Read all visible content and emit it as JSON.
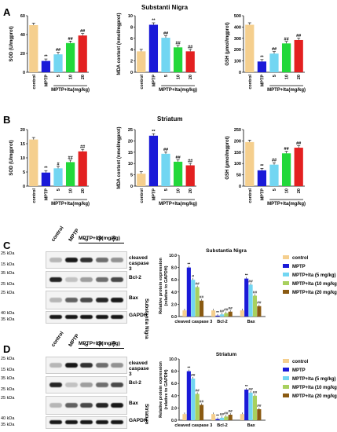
{
  "panel_labels": {
    "A": "A",
    "B": "B",
    "C": "C",
    "D": "D"
  },
  "sections": {
    "substantia": "Substanti Nigra",
    "striatum": "Striatum"
  },
  "group_label": "MPTP+Ita(mg/kg)",
  "categories": [
    "control",
    "MPTP",
    "5",
    "10",
    "20"
  ],
  "colors": {
    "control": "#f5cf8e",
    "MPTP": "#1a1ad8",
    "ita5": "#72d6f2",
    "ita10": "#22d83a",
    "ita20": "#e32020",
    "c_ita20": "#8a5a12",
    "c_ita10": "#a8d05e"
  },
  "chart_data": [
    {
      "type": "bar",
      "id": "A1",
      "ylabel": "SOD (U/mgprot)",
      "yticks": [
        "0",
        "20",
        "40",
        "60"
      ],
      "ylim": [
        0,
        60
      ],
      "values": [
        50,
        12,
        19,
        31,
        39
      ],
      "stars": [
        "",
        "**",
        "##",
        "##",
        "##"
      ]
    },
    {
      "type": "bar",
      "id": "A2",
      "ylabel": "MDA content (nmol/mgprot)",
      "yticks": [
        "0",
        "2",
        "4",
        "6",
        "8",
        "10"
      ],
      "ylim": [
        0,
        10
      ],
      "values": [
        3.7,
        8.4,
        6.1,
        4.4,
        3.7
      ],
      "stars": [
        "",
        "**",
        "##",
        "##",
        "##"
      ]
    },
    {
      "type": "bar",
      "id": "A3",
      "ylabel": "GSH (μmol/mgprot)",
      "yticks": [
        "0",
        "100",
        "200",
        "300",
        "400",
        "500"
      ],
      "ylim": [
        0,
        500
      ],
      "values": [
        420,
        95,
        165,
        255,
        285
      ],
      "stars": [
        "",
        "**",
        "##",
        "##",
        "##"
      ]
    },
    {
      "type": "bar",
      "id": "B1",
      "ylabel": "SOD (U/mgprot)",
      "yticks": [
        "0",
        "5",
        "10",
        "15",
        "20"
      ],
      "ylim": [
        0,
        20
      ],
      "values": [
        16.5,
        4.8,
        6.3,
        8.5,
        12.3
      ],
      "stars": [
        "",
        "**",
        "#",
        "##",
        "##"
      ]
    },
    {
      "type": "bar",
      "id": "B2",
      "ylabel": "MDA content (nmol/mgprot)",
      "yticks": [
        "0",
        "5",
        "10",
        "15",
        "20",
        "25"
      ],
      "ylim": [
        0,
        25
      ],
      "values": [
        5.5,
        22.3,
        14.3,
        10.8,
        9.2
      ],
      "stars": [
        "",
        "**",
        "##",
        "##",
        "##"
      ]
    },
    {
      "type": "bar",
      "id": "B3",
      "ylabel": "GSH (μmol/mgprot)",
      "yticks": [
        "0",
        "50",
        "100",
        "150",
        "200",
        "250"
      ],
      "ylim": [
        0,
        250
      ],
      "values": [
        195,
        70,
        95,
        145,
        170
      ],
      "stars": [
        "",
        "**",
        "##",
        "##",
        "##"
      ]
    },
    {
      "type": "bar",
      "id": "C",
      "title": "Substantia Nigra",
      "ylabel": "Relative protein expression (relative to GAPDH)",
      "yticks": [
        "0.0",
        "2.0",
        "4.0",
        "6.0",
        "8.0",
        "10.0"
      ],
      "ylim": [
        0,
        10
      ],
      "categories": [
        "cleaved caspase 3",
        "Bcl-2",
        "Bax"
      ],
      "series": [
        {
          "name": "control",
          "values": [
            1.0,
            1.0,
            1.0
          ]
        },
        {
          "name": "MPTP",
          "values": [
            8.0,
            0.15,
            6.2
          ]
        },
        {
          "name": "MPTP+Ita (5 mg/kg)",
          "values": [
            6.0,
            0.35,
            5.2
          ]
        },
        {
          "name": "MPTP+Ita (10 mg/kg)",
          "values": [
            4.8,
            0.55,
            3.4
          ]
        },
        {
          "name": "MPTP+Ita (20 mg/kg)",
          "values": [
            2.6,
            0.8,
            1.7
          ]
        }
      ],
      "stars": [
        [
          "",
          "**",
          "#",
          "##",
          "##"
        ],
        [
          "",
          "**",
          "##",
          "##",
          "##"
        ],
        [
          "",
          "**",
          "##",
          "##",
          "##"
        ]
      ]
    },
    {
      "type": "bar",
      "id": "D",
      "title": "Striatum",
      "ylabel": "Relative protein expression (relative to GAPDH)",
      "yticks": [
        "0.0",
        "2.0",
        "4.0",
        "6.0",
        "8.0",
        "10.0"
      ],
      "ylim": [
        0,
        10
      ],
      "categories": [
        "cleaved caspase 3",
        "Bcl-2",
        "Bax"
      ],
      "series": [
        {
          "name": "control",
          "values": [
            1.0,
            1.0,
            1.0
          ]
        },
        {
          "name": "MPTP",
          "values": [
            8.0,
            0.2,
            5.0
          ]
        },
        {
          "name": "MPTP+Ita (5 mg/kg)",
          "values": [
            6.8,
            0.4,
            4.5
          ]
        },
        {
          "name": "MPTP+Ita (10 mg/kg)",
          "values": [
            4.3,
            0.6,
            4.0
          ]
        },
        {
          "name": "MPTP+Ita (20 mg/kg)",
          "values": [
            2.5,
            0.9,
            1.8
          ]
        }
      ],
      "stars": [
        [
          "",
          "**",
          "##",
          "##",
          "##"
        ],
        [
          "",
          "**",
          "##",
          "##",
          "##"
        ],
        [
          "",
          "**",
          "##",
          "##",
          "##"
        ]
      ]
    }
  ],
  "legend": [
    "control",
    "MPTP",
    "MPTP+Ita (5 mg/kg)",
    "MPTP+Ita (10 mg/kg)",
    "MPTP+Ita (20 mg/kg)"
  ],
  "blot": {
    "lane_labels": [
      "control",
      "MPTP",
      "5",
      "10",
      "20"
    ],
    "C": {
      "rows": [
        {
          "kda": "25 kDa",
          "kda2": "15 kDa",
          "name": "cleaved caspase 3"
        },
        {
          "kda": "35 kDa",
          "kda2": "25 kDa",
          "name": "Bcl-2"
        },
        {
          "kda": "25 kDa",
          "kda2": "",
          "name": "Bax"
        },
        {
          "kda": "40 kDa",
          "kda2": "35 kDa",
          "name": "GAPDH"
        }
      ],
      "region": "Substantia Nigra",
      "region_num": "3"
    },
    "D": {
      "rows": [
        {
          "kda": "25 kDa",
          "kda2": "15 kDa",
          "name": "cleaved caspase 3"
        },
        {
          "kda": "35 kDa",
          "kda2": "25 kDa",
          "name": "Bcl-2"
        },
        {
          "kda": "25 kDa",
          "kda2": "",
          "name": "Bax"
        },
        {
          "kda": "40 kDa",
          "kda2": "35 kDa",
          "name": "GAPDH"
        }
      ],
      "region": "Striatum"
    }
  }
}
